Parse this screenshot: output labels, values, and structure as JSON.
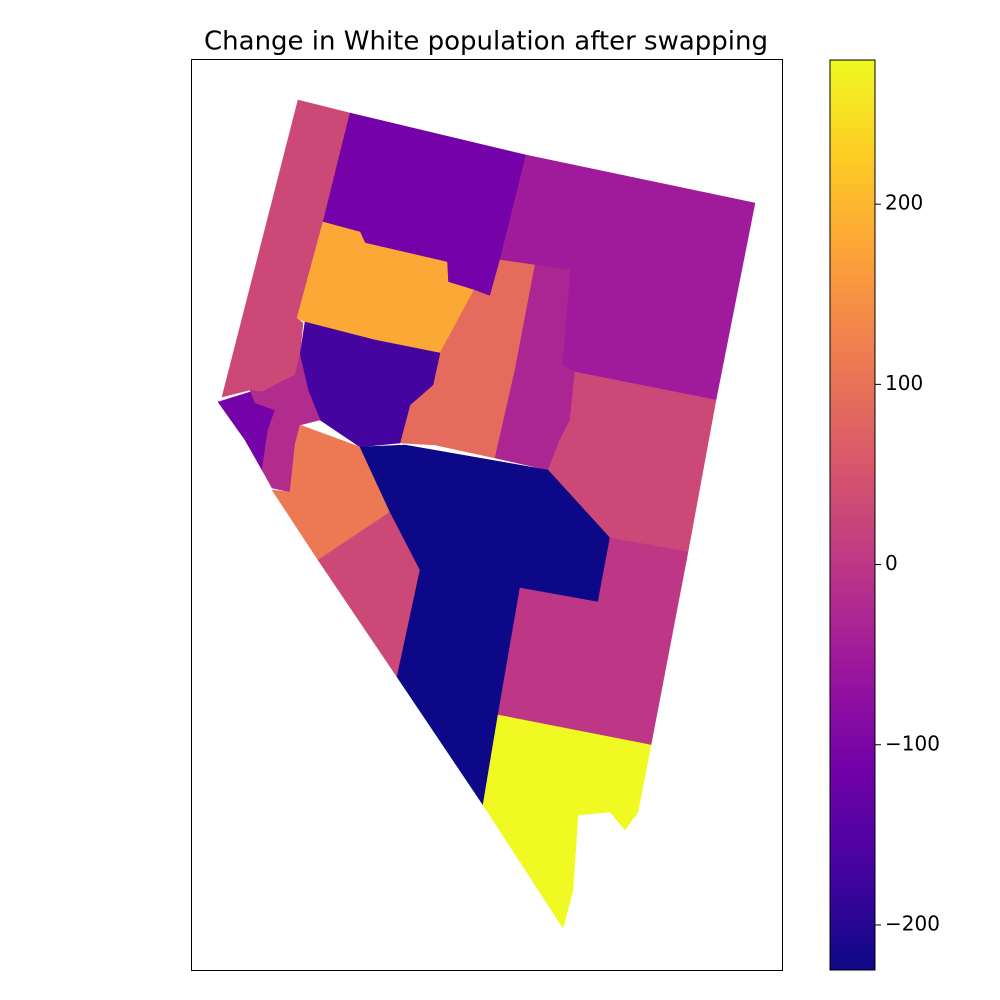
{
  "chart_data": {
    "type": "choropleth",
    "title": "Change in White population after swapping",
    "colormap": "plasma",
    "values": [
      30,
      -110,
      -50,
      180,
      90,
      -30,
      30,
      -170,
      30,
      -110,
      -20,
      110,
      30,
      -225,
      0,
      280
    ],
    "clim": [
      -225,
      280
    ],
    "cticks": [
      {
        "value": -200,
        "label": "−200"
      },
      {
        "value": -100,
        "label": "−100"
      },
      0,
      100,
      200
    ]
  }
}
